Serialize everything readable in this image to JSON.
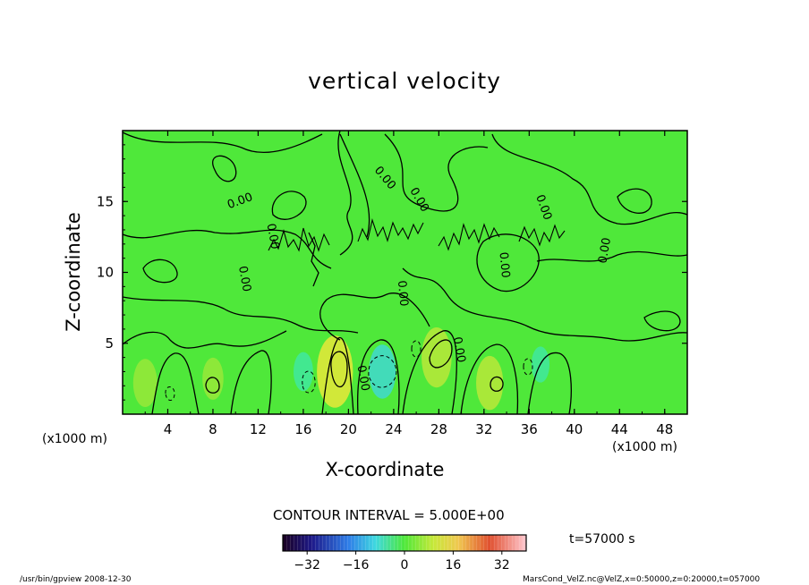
{
  "chart_data": {
    "type": "heatmap",
    "title": "vertical velocity",
    "xlabel": "X-coordinate",
    "ylabel": "Z-coordinate",
    "x_unit": "(x1000 m)",
    "x_ticks": [
      4,
      8,
      12,
      16,
      20,
      24,
      28,
      32,
      36,
      40,
      44,
      48
    ],
    "y_ticks": [
      5,
      10,
      15
    ],
    "xlim": [
      0,
      50
    ],
    "ylim": [
      0,
      20
    ],
    "contour_label": "0.00",
    "contour_interval_text": "CONTOUR INTERVAL = 5.000E+00",
    "colorbar": {
      "range": [
        -40,
        40
      ],
      "ticks": [
        -32,
        -16,
        0,
        16,
        32
      ],
      "tick_labels": [
        "−32",
        "−16",
        "0",
        "16",
        "32"
      ]
    },
    "features": [
      {
        "x": 2,
        "z": 2.2,
        "value": 6
      },
      {
        "x": 8,
        "z": 2.5,
        "value": 4
      },
      {
        "x": 18.8,
        "z": 3,
        "value": 14
      },
      {
        "x": 23,
        "z": 3,
        "value": -8
      },
      {
        "x": 27.8,
        "z": 4,
        "value": 10
      },
      {
        "x": 32.5,
        "z": 2.2,
        "value": 8
      },
      {
        "x": 16,
        "z": 3,
        "value": -3
      },
      {
        "x": 37,
        "z": 3.5,
        "value": -2
      }
    ]
  },
  "annotations": {
    "time": "t=57000 s",
    "footer_left": "/usr/bin/gpview  2008-12-30",
    "footer_right": "MarsCond_VelZ.nc@VelZ,x=0:50000,z=0:20000,t=057000"
  },
  "colors": {
    "background_field": "#4fe83a",
    "contour": "#000000"
  }
}
